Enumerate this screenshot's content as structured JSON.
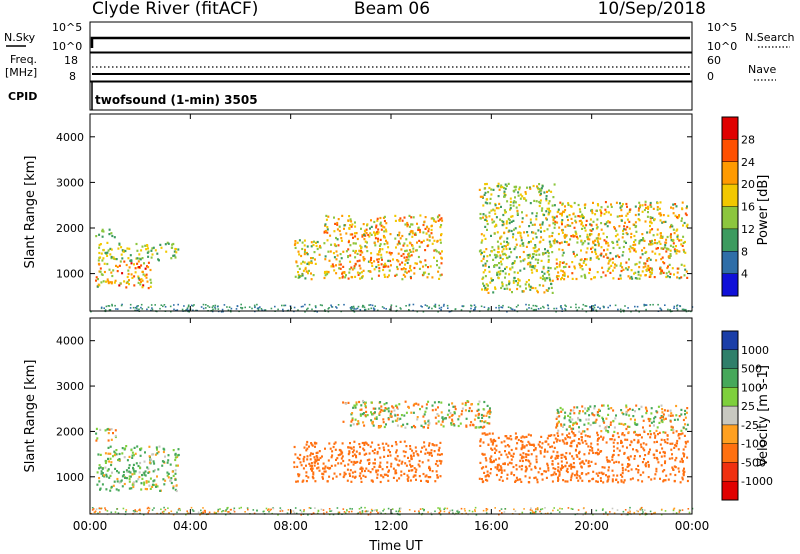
{
  "header": {
    "station": "Clyde River (fitACF)",
    "beam": "Beam 06",
    "date": "10/Sep/2018"
  },
  "top_panels": {
    "nsky": {
      "left_label": "N.Sky",
      "right_label": "N.Search",
      "left_ticks": [
        "10^5",
        "10^0"
      ],
      "right_ticks": [
        "10^5",
        "10^0"
      ]
    },
    "freq": {
      "left_label_1": "Freq.",
      "left_label_2": "[MHz]",
      "left_ticks": [
        "18",
        "8"
      ],
      "right_label": "Nave",
      "right_ticks": [
        "60",
        "0"
      ]
    },
    "cpid": {
      "label": "CPID",
      "text": "twofsound (1-min) 3505"
    }
  },
  "chart_data": [
    {
      "type": "heatmap",
      "panel": "power",
      "ylabel": "Slant Range [km]",
      "xlabel": "Time UT",
      "colorbar_label": "Power [dB]",
      "xlim_hours": [
        0,
        24
      ],
      "ylim_km": [
        180,
        4500
      ],
      "x_ticks": [
        "00:00",
        "04:00",
        "08:00",
        "12:00",
        "16:00",
        "20:00",
        "00:00"
      ],
      "y_ticks": [
        1000,
        2000,
        3000,
        4000
      ],
      "colorbar_ticks": [
        "28",
        "24",
        "20",
        "16",
        "12",
        "8",
        "4"
      ],
      "colorbar_colors": [
        "#e00000",
        "#ff5000",
        "#ff9a00",
        "#f2c800",
        "#8cc63e",
        "#3c9b5f",
        "#2f6ea8",
        "#1010d8"
      ],
      "regions": [
        {
          "t0": 0.2,
          "t1": 2.4,
          "r0": 700,
          "r1": 1300,
          "dbmax": 28
        },
        {
          "t0": 0.3,
          "t1": 3.5,
          "r0": 1300,
          "r1": 1700,
          "dbmax": 18
        },
        {
          "t0": 0.2,
          "t1": 1.0,
          "r0": 1800,
          "r1": 2000,
          "dbmax": 14
        },
        {
          "t0": 8.1,
          "t1": 9.2,
          "r0": 900,
          "r1": 1800,
          "dbmax": 22
        },
        {
          "t0": 9.3,
          "t1": 14.0,
          "r0": 900,
          "r1": 2300,
          "dbmax": 26
        },
        {
          "t0": 15.5,
          "t1": 18.5,
          "r0": 600,
          "r1": 3000,
          "dbmax": 20
        },
        {
          "t0": 18.5,
          "t1": 23.8,
          "r0": 900,
          "r1": 2600,
          "dbmax": 24
        }
      ]
    },
    {
      "type": "heatmap",
      "panel": "velocity",
      "ylabel": "Slant Range [km]",
      "xlabel": "Time UT",
      "colorbar_label": "Velocity [m s-1]",
      "xlim_hours": [
        0,
        24
      ],
      "ylim_km": [
        180,
        4500
      ],
      "x_ticks": [
        "00:00",
        "04:00",
        "08:00",
        "12:00",
        "16:00",
        "20:00",
        "00:00"
      ],
      "y_ticks": [
        1000,
        2000,
        3000,
        4000
      ],
      "colorbar_ticks": [
        "1000",
        "500",
        "100",
        "25",
        "-25",
        "-100",
        "-500",
        "-1000"
      ],
      "colorbar_colors": [
        "#1a3ea8",
        "#2f7f6a",
        "#46a85a",
        "#7ecf3c",
        "#c8c8c0",
        "#ffa020",
        "#ff7010",
        "#f03010",
        "#e00000"
      ],
      "regions": [
        {
          "t0": 0.2,
          "t1": 3.5,
          "r0": 700,
          "r1": 1700,
          "vel": 100
        },
        {
          "t0": 0.2,
          "t1": 1.0,
          "r0": 1800,
          "r1": 2100,
          "vel": 0
        },
        {
          "t0": 8.1,
          "t1": 14.0,
          "r0": 900,
          "r1": 1800,
          "vel": -300
        },
        {
          "t0": 10.0,
          "t1": 16.0,
          "r0": 2100,
          "r1": 2700,
          "vel": 0
        },
        {
          "t0": 15.5,
          "t1": 23.8,
          "r0": 900,
          "r1": 2000,
          "vel": -300
        },
        {
          "t0": 18.5,
          "t1": 23.8,
          "r0": 2000,
          "r1": 2600,
          "vel": 0
        }
      ]
    }
  ]
}
